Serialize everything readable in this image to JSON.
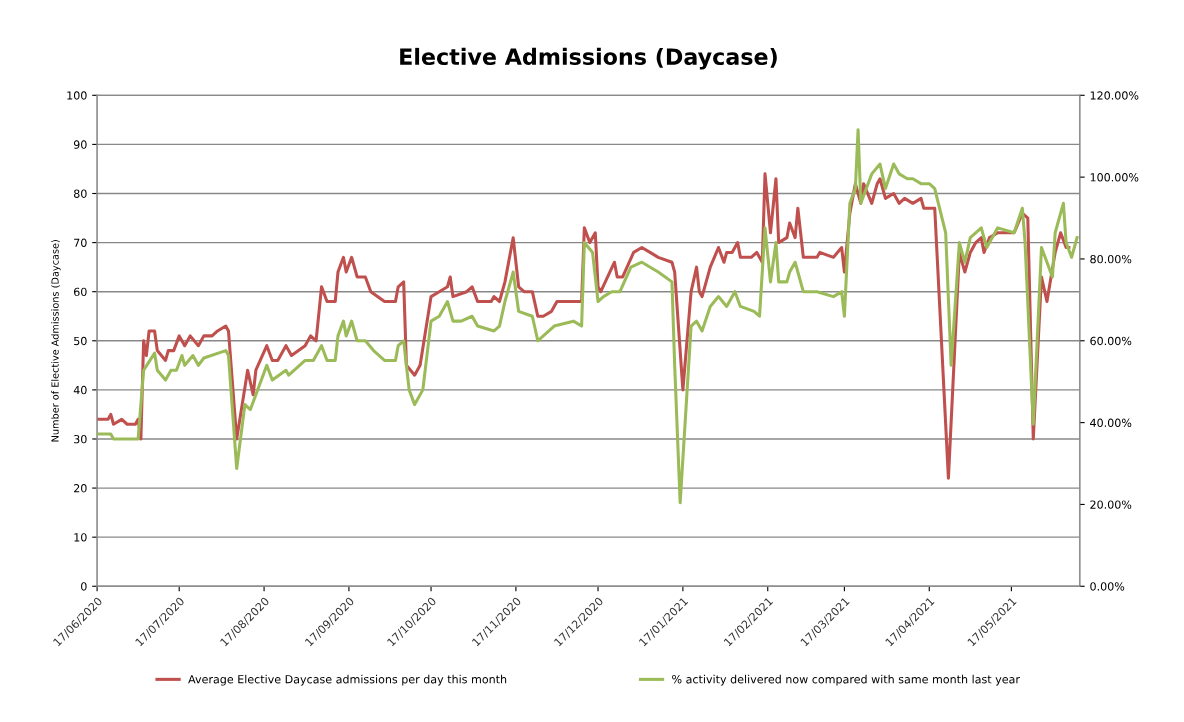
{
  "chart_data": {
    "type": "line",
    "title": "Elective Admissions (Daycase)",
    "ylabel": "Number of Elective Admissions (Daycase)",
    "xlim": [
      "2020-06-17",
      "2021-06-11"
    ],
    "xticks": [
      {
        "value": "2020-06-17",
        "label": "17/06/2020"
      },
      {
        "value": "2020-07-17",
        "label": "17/07/2020"
      },
      {
        "value": "2020-08-17",
        "label": "17/08/2020"
      },
      {
        "value": "2020-09-17",
        "label": "17/09/2020"
      },
      {
        "value": "2020-10-17",
        "label": "17/10/2020"
      },
      {
        "value": "2020-11-17",
        "label": "17/11/2020"
      },
      {
        "value": "2020-12-17",
        "label": "17/12/2020"
      },
      {
        "value": "2021-01-17",
        "label": "17/01/2021"
      },
      {
        "value": "2021-02-17",
        "label": "17/02/2021"
      },
      {
        "value": "2021-03-17",
        "label": "17/03/2021"
      },
      {
        "value": "2021-04-17",
        "label": "17/04/2021"
      },
      {
        "value": "2021-05-17",
        "label": "17/05/2021"
      }
    ],
    "ylim": [
      0,
      100
    ],
    "yticks": [
      0,
      10,
      20,
      30,
      40,
      50,
      60,
      70,
      80,
      90,
      100
    ],
    "y2lim": [
      0,
      120
    ],
    "y2ticks": [
      {
        "value": 0,
        "label": "0.00%"
      },
      {
        "value": 20,
        "label": "20.00%"
      },
      {
        "value": 40,
        "label": "40.00%"
      },
      {
        "value": 60,
        "label": "60.00%"
      },
      {
        "value": 80,
        "label": "80.00%"
      },
      {
        "value": 100,
        "label": "100.00%"
      },
      {
        "value": 120,
        "label": "120.00%"
      }
    ],
    "grid": "y",
    "legend": "bottom",
    "marker": "none",
    "line_style": "solid",
    "series": [
      {
        "name": "Average Elective Daycase admissions per day this month",
        "color": "#c0504d",
        "x": [
          "2020-06-17",
          "2020-06-21",
          "2020-06-22",
          "2020-06-23",
          "2020-06-26",
          "2020-06-28",
          "2020-07-01",
          "2020-07-02",
          "2020-07-03",
          "2020-07-04",
          "2020-07-05",
          "2020-07-06",
          "2020-07-08",
          "2020-07-09",
          "2020-07-12",
          "2020-07-13",
          "2020-07-15",
          "2020-07-17",
          "2020-07-19",
          "2020-07-21",
          "2020-07-24",
          "2020-07-26",
          "2020-07-29",
          "2020-07-31",
          "2020-08-03",
          "2020-08-04",
          "2020-08-07",
          "2020-08-11",
          "2020-08-13",
          "2020-08-14",
          "2020-08-18",
          "2020-08-20",
          "2020-08-22",
          "2020-08-25",
          "2020-08-27",
          "2020-09-01",
          "2020-09-03",
          "2020-09-05",
          "2020-09-07",
          "2020-09-09",
          "2020-09-12",
          "2020-09-13",
          "2020-09-15",
          "2020-09-16",
          "2020-09-18",
          "2020-09-20",
          "2020-09-23",
          "2020-09-25",
          "2020-09-30",
          "2020-10-04",
          "2020-10-05",
          "2020-10-07",
          "2020-10-08",
          "2020-10-11",
          "2020-10-13",
          "2020-10-17",
          "2020-10-20",
          "2020-10-23",
          "2020-10-24",
          "2020-10-25",
          "2020-10-30",
          "2020-11-01",
          "2020-11-03",
          "2020-11-08",
          "2020-11-09",
          "2020-11-11",
          "2020-11-13",
          "2020-11-16",
          "2020-11-18",
          "2020-11-20",
          "2020-11-23",
          "2020-11-25",
          "2020-11-27",
          "2020-11-30",
          "2020-12-02",
          "2020-12-08",
          "2020-12-11",
          "2020-12-12",
          "2020-12-14",
          "2020-12-16",
          "2020-12-17",
          "2020-12-18",
          "2020-12-23",
          "2020-12-24",
          "2020-12-26",
          "2020-12-30",
          "2021-01-02",
          "2021-01-05",
          "2021-01-08",
          "2021-01-13",
          "2021-01-14",
          "2021-01-17",
          "2021-01-20",
          "2021-01-22",
          "2021-01-23",
          "2021-01-24",
          "2021-01-27",
          "2021-01-30",
          "2021-02-01",
          "2021-02-02",
          "2021-02-04",
          "2021-02-06",
          "2021-02-07",
          "2021-02-11",
          "2021-02-13",
          "2021-02-15",
          "2021-02-16",
          "2021-02-18",
          "2021-02-20",
          "2021-02-21",
          "2021-02-24",
          "2021-02-25",
          "2021-02-27",
          "2021-02-28",
          "2021-03-02",
          "2021-03-07",
          "2021-03-08",
          "2021-03-13",
          "2021-03-16",
          "2021-03-17",
          "2021-03-19",
          "2021-03-21",
          "2021-03-23",
          "2021-03-24",
          "2021-03-27",
          "2021-03-29",
          "2021-03-30",
          "2021-04-01",
          "2021-04-04",
          "2021-04-06",
          "2021-04-08",
          "2021-04-11",
          "2021-04-14",
          "2021-04-15",
          "2021-04-19",
          "2021-04-24",
          "2021-04-28",
          "2021-04-30",
          "2021-05-02",
          "2021-05-04",
          "2021-05-06",
          "2021-05-07",
          "2021-05-09",
          "2021-05-12",
          "2021-05-18",
          "2021-05-21",
          "2021-05-23",
          "2021-05-25",
          "2021-05-28",
          "2021-05-30",
          "2021-06-02",
          "2021-06-04",
          "2021-06-06",
          "2021-06-07"
        ],
        "values": [
          34,
          34,
          35,
          33,
          34,
          33,
          33,
          34,
          30,
          50,
          47,
          52,
          52,
          48,
          46,
          48,
          48,
          51,
          49,
          51,
          49,
          51,
          51,
          52,
          53,
          52,
          30,
          44,
          39,
          44,
          49,
          46,
          46,
          49,
          47,
          49,
          51,
          50,
          61,
          58,
          58,
          64,
          67,
          64,
          67,
          63,
          63,
          60,
          58,
          58,
          61,
          62,
          45,
          43,
          45,
          59,
          60,
          61,
          63,
          59,
          60,
          61,
          58,
          58,
          59,
          58,
          62,
          71,
          61,
          60,
          60,
          55,
          55,
          56,
          58,
          58,
          58,
          73,
          70,
          72,
          61,
          60,
          66,
          63,
          63,
          68,
          69,
          68,
          67,
          66,
          64,
          40,
          60,
          65,
          60,
          59,
          65,
          69,
          66,
          68,
          68,
          70,
          67,
          67,
          68,
          66,
          84,
          72,
          83,
          70,
          71,
          74,
          71,
          77,
          67,
          67,
          68,
          67,
          69,
          64,
          76,
          82,
          78,
          82,
          78,
          82,
          83,
          79,
          80,
          78,
          79,
          78,
          79,
          77,
          77,
          22,
          68,
          64,
          68,
          70,
          71,
          68,
          71,
          72,
          72,
          76,
          75,
          30,
          63,
          58,
          68,
          72,
          69,
          69
        ]
      },
      {
        "name": "% activity delivered now compared with same month last year",
        "color": "#9bbb59",
        "axis": "y2",
        "x": [
          "2020-06-17",
          "2020-06-22",
          "2020-06-23",
          "2020-07-02",
          "2020-07-04",
          "2020-07-08",
          "2020-07-09",
          "2020-07-12",
          "2020-07-14",
          "2020-07-16",
          "2020-07-18",
          "2020-07-19",
          "2020-07-22",
          "2020-07-24",
          "2020-07-26",
          "2020-08-03",
          "2020-08-04",
          "2020-08-07",
          "2020-08-10",
          "2020-08-12",
          "2020-08-14",
          "2020-08-18",
          "2020-08-20",
          "2020-08-25",
          "2020-08-26",
          "2020-09-01",
          "2020-09-04",
          "2020-09-07",
          "2020-09-09",
          "2020-09-12",
          "2020-09-13",
          "2020-09-15",
          "2020-09-16",
          "2020-09-18",
          "2020-09-20",
          "2020-09-23",
          "2020-09-26",
          "2020-09-30",
          "2020-10-04",
          "2020-10-05",
          "2020-10-07",
          "2020-10-09",
          "2020-10-11",
          "2020-10-14",
          "2020-10-17",
          "2020-10-20",
          "2020-10-23",
          "2020-10-25",
          "2020-10-28",
          "2020-11-01",
          "2020-11-03",
          "2020-11-09",
          "2020-11-11",
          "2020-11-13",
          "2020-11-16",
          "2020-11-18",
          "2020-11-23",
          "2020-11-25",
          "2020-11-27",
          "2020-12-01",
          "2020-12-08",
          "2020-12-11",
          "2020-12-12",
          "2020-12-15",
          "2020-12-17",
          "2020-12-19",
          "2020-12-22",
          "2020-12-25",
          "2020-12-29",
          "2021-01-02",
          "2021-01-08",
          "2021-01-13",
          "2021-01-14",
          "2021-01-16",
          "2021-01-20",
          "2021-01-22",
          "2021-01-24",
          "2021-01-27",
          "2021-01-30",
          "2021-02-02",
          "2021-02-05",
          "2021-02-07",
          "2021-02-12",
          "2021-02-14",
          "2021-02-16",
          "2021-02-18",
          "2021-02-20",
          "2021-02-21",
          "2021-02-24",
          "2021-02-25",
          "2021-02-27",
          "2021-03-02",
          "2021-03-07",
          "2021-03-13",
          "2021-03-16",
          "2021-03-17",
          "2021-03-19",
          "2021-03-21",
          "2021-03-22",
          "2021-03-23",
          "2021-03-27",
          "2021-03-30",
          "2021-04-01",
          "2021-04-04",
          "2021-04-06",
          "2021-04-09",
          "2021-04-11",
          "2021-04-14",
          "2021-04-17",
          "2021-04-19",
          "2021-04-23",
          "2021-04-25",
          "2021-04-28",
          "2021-04-30",
          "2021-05-02",
          "2021-05-06",
          "2021-05-08",
          "2021-05-12",
          "2021-05-18",
          "2021-05-21",
          "2021-05-22",
          "2021-05-25",
          "2021-05-28",
          "2021-06-01",
          "2021-06-02",
          "2021-06-05",
          "2021-06-06",
          "2021-06-08",
          "2021-06-10"
        ],
        "values": [
          37.2,
          37.2,
          36,
          36,
          52.8,
          57,
          52.8,
          50.4,
          52.8,
          52.8,
          56.4,
          54,
          56.4,
          54,
          55.8,
          57.6,
          56.4,
          28.8,
          44.4,
          43.2,
          46.8,
          54,
          50.4,
          52.8,
          51.6,
          55.2,
          55.2,
          58.8,
          55.2,
          55.2,
          61.2,
          64.8,
          61.2,
          64.8,
          60,
          60,
          57.6,
          55.2,
          55.2,
          58.8,
          60,
          48,
          44.4,
          48,
          64.8,
          66,
          69.6,
          64.8,
          64.8,
          66,
          63.6,
          62.4,
          63.6,
          69.6,
          76.8,
          67.2,
          66,
          60,
          61.2,
          63.6,
          64.8,
          63.6,
          84,
          81.6,
          69.6,
          70.8,
          72,
          72,
          78,
          79.2,
          76.8,
          74.4,
          54,
          20.4,
          63.6,
          64.8,
          62.4,
          68.4,
          70.8,
          68.4,
          72,
          68.4,
          67.2,
          66,
          87.6,
          74.4,
          84,
          74.4,
          74.4,
          76.8,
          79.2,
          72,
          72,
          70.8,
          72,
          66,
          93.6,
          97.2,
          111.6,
          93.6,
          100.8,
          103.2,
          97.2,
          103.2,
          100.8,
          99.6,
          99.6,
          98.4,
          98.4,
          97.2,
          86.4,
          54,
          84,
          79.2,
          85.2,
          87.6,
          82.8,
          87.6,
          86.4,
          92.4,
          84,
          39.6,
          82.8,
          75.6,
          86.4,
          93.6,
          84,
          80.4,
          85.2
        ]
      }
    ]
  }
}
